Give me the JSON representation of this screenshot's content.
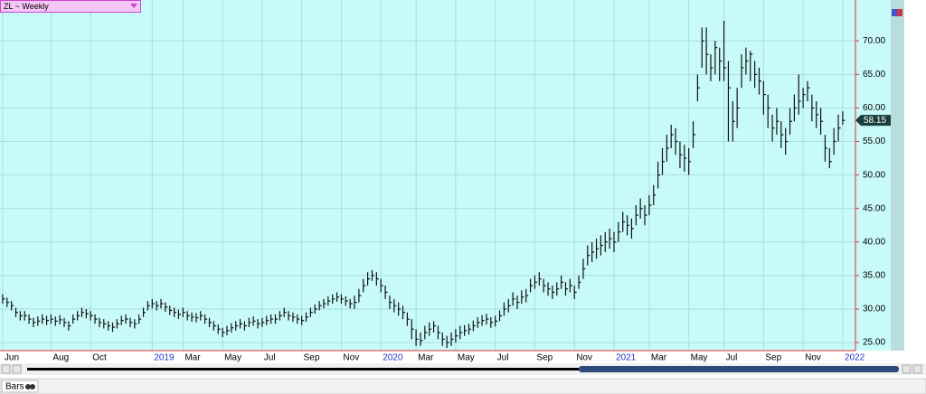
{
  "chart_data": {
    "type": "ohlc",
    "title": "ZL ~ Weekly",
    "color": "#111111",
    "grid": true,
    "xlim": [
      -0.6,
      193.9
    ],
    "xticks": [
      {
        "value": 0,
        "label": "Jun"
      },
      {
        "value": 11,
        "label": "Aug"
      },
      {
        "value": 20,
        "label": "Oct"
      },
      {
        "value": 34,
        "label": "2019"
      },
      {
        "value": 41,
        "label": "Mar"
      },
      {
        "value": 50,
        "label": "May"
      },
      {
        "value": 59,
        "label": "Jul"
      },
      {
        "value": 68,
        "label": "Sep"
      },
      {
        "value": 77,
        "label": "Nov"
      },
      {
        "value": 86,
        "label": "2020"
      },
      {
        "value": 94,
        "label": "Mar"
      },
      {
        "value": 103,
        "label": "May"
      },
      {
        "value": 112,
        "label": "Jul"
      },
      {
        "value": 121,
        "label": "Sep"
      },
      {
        "value": 130,
        "label": "Nov"
      },
      {
        "value": 139,
        "label": "2021"
      },
      {
        "value": 147,
        "label": "Mar"
      },
      {
        "value": 156,
        "label": "May"
      },
      {
        "value": 164,
        "label": "Jul"
      },
      {
        "value": 173,
        "label": "Sep"
      },
      {
        "value": 182,
        "label": "Nov"
      },
      {
        "value": 191,
        "label": "2022"
      }
    ],
    "ylim": [
      23.8,
      76.1
    ],
    "yticks": [
      {
        "value": 25,
        "label": "25.00"
      },
      {
        "value": 30,
        "label": "30.00"
      },
      {
        "value": 35,
        "label": "35.00"
      },
      {
        "value": 40,
        "label": "40.00"
      },
      {
        "value": 45,
        "label": "45.00"
      },
      {
        "value": 50,
        "label": "50.00"
      },
      {
        "value": 55,
        "label": "55.00"
      },
      {
        "value": 60,
        "label": "60.00"
      },
      {
        "value": 65,
        "label": "65.00"
      },
      {
        "value": 70,
        "label": "70.00"
      }
    ],
    "high": [
      32.2,
      31.7,
      31.2,
      30.2,
      29.7,
      29.7,
      29.2,
      28.7,
      28.9,
      29.2,
      29,
      29.2,
      28.9,
      29.1,
      28.7,
      28.2,
      29.2,
      29.7,
      30.2,
      30,
      29.7,
      29.2,
      28.7,
      28.5,
      28.2,
      28,
      28.5,
      29,
      29.2,
      28.7,
      28.5,
      29.2,
      30.2,
      31.2,
      31.5,
      31.2,
      31.5,
      31,
      30.5,
      30.2,
      29.9,
      30.2,
      29.7,
      29.5,
      29.4,
      29.7,
      29.2,
      28.7,
      28.2,
      27.7,
      27.2,
      27.5,
      27.9,
      28.2,
      28.5,
      28.2,
      28.7,
      28.9,
      28.5,
      28.7,
      29,
      29.2,
      29.2,
      29.7,
      30.2,
      29.7,
      29.5,
      29.2,
      29,
      29.5,
      30.2,
      30.7,
      31.2,
      31.5,
      31.9,
      32.2,
      32.5,
      32.2,
      31.9,
      31.5,
      32,
      33,
      34.5,
      35.5,
      35.8,
      35.5,
      34.5,
      33.5,
      32,
      31.5,
      31,
      30.5,
      29.5,
      28.5,
      27,
      26.5,
      27.5,
      28,
      28.2,
      27.5,
      26.5,
      26,
      26.5,
      27,
      27.5,
      27.6,
      27.8,
      28.3,
      28.8,
      29.1,
      29.3,
      28.8,
      29,
      29.8,
      31,
      31.5,
      32.5,
      32,
      32.8,
      33,
      34.5,
      35,
      35.5,
      34.5,
      34,
      33.5,
      34,
      35,
      34,
      34.5,
      33.5,
      35,
      37.5,
      39.5,
      40,
      40.5,
      41,
      41.5,
      42,
      41.5,
      43,
      44.5,
      44,
      43.5,
      45.5,
      46.5,
      45.5,
      47,
      48.5,
      52,
      54,
      56,
      57.5,
      57,
      55,
      54.5,
      54,
      58,
      65,
      72,
      72,
      68,
      70,
      69,
      73,
      67,
      61,
      63,
      68,
      69,
      68.5,
      67,
      66,
      64,
      62,
      59,
      60,
      58,
      57,
      60,
      62,
      65,
      63,
      64,
      62,
      61,
      60,
      56,
      54,
      57,
      59,
      59.5
    ],
    "low": [
      30.8,
      30.3,
      29.8,
      28.8,
      28.3,
      28.3,
      27.8,
      27.3,
      27.5,
      27.8,
      27.6,
      27.8,
      27.5,
      27.7,
      27.3,
      26.8,
      27.8,
      28.3,
      28.8,
      28.6,
      28.3,
      27.8,
      27.3,
      27.1,
      26.8,
      26.6,
      27.1,
      27.6,
      27.8,
      27.3,
      27.1,
      27.8,
      28.8,
      29.8,
      30.1,
      29.8,
      30.1,
      29.6,
      29.1,
      28.8,
      28.5,
      28.8,
      28.3,
      28.1,
      28,
      28.3,
      27.8,
      27.3,
      26.8,
      26.3,
      25.8,
      26.1,
      26.5,
      26.8,
      27.1,
      26.8,
      27.3,
      27.5,
      27.1,
      27.3,
      27.6,
      27.8,
      27.8,
      28.3,
      28.8,
      28.3,
      28.1,
      27.8,
      27.6,
      28.1,
      28.8,
      29.3,
      29.8,
      30.1,
      30.5,
      30.8,
      31.1,
      30.8,
      30.5,
      30.1,
      30,
      31,
      32.5,
      33.5,
      34.2,
      33.5,
      32.5,
      31.5,
      30,
      29.5,
      29,
      28.5,
      27.5,
      25.5,
      24.5,
      24.5,
      25.5,
      26,
      26.5,
      25.5,
      24.5,
      24.2,
      24.5,
      25,
      25.5,
      26,
      26.2,
      26.7,
      27.2,
      27.5,
      27.7,
      27.2,
      27.4,
      28.2,
      29,
      29.5,
      30.5,
      30,
      30.8,
      31,
      32.5,
      33,
      33.5,
      32.5,
      32,
      31.5,
      32,
      33,
      32,
      32.5,
      31.5,
      33,
      34.5,
      36.5,
      37,
      37.5,
      38,
      38.5,
      39,
      38.5,
      40,
      41.5,
      41,
      40.5,
      42.5,
      43.5,
      42.5,
      44,
      45.5,
      48,
      50,
      52,
      54,
      53,
      51,
      50.5,
      50,
      54,
      61,
      66,
      65,
      64,
      65,
      64,
      64,
      55,
      55,
      57,
      63,
      65,
      64,
      63,
      62,
      59,
      57,
      55,
      56,
      54,
      53,
      56,
      58,
      59,
      60,
      61,
      58,
      57,
      56,
      52,
      51,
      53,
      55,
      57.5
    ],
    "close": [
      31.5,
      31,
      30.5,
      29.5,
      29,
      29,
      28.5,
      28,
      28.2,
      28.5,
      28.3,
      28.5,
      28.2,
      28.4,
      28,
      27.5,
      28.5,
      29,
      29.5,
      29.3,
      29,
      28.5,
      28,
      27.8,
      27.5,
      27.3,
      27.8,
      28.3,
      28.5,
      28,
      27.8,
      28.5,
      29.5,
      30.5,
      30.8,
      30.5,
      30.8,
      30.3,
      29.8,
      29.5,
      29.2,
      29.5,
      29,
      28.8,
      28.7,
      29,
      28.5,
      28,
      27.5,
      27,
      26.5,
      26.8,
      27.2,
      27.5,
      27.8,
      27.5,
      28,
      28.2,
      27.8,
      28,
      28.3,
      28.5,
      28.5,
      29,
      29.5,
      29,
      28.8,
      28.5,
      28.3,
      28.8,
      29.5,
      30,
      30.5,
      30.8,
      31.2,
      31.5,
      31.8,
      31.5,
      31.2,
      30.8,
      31,
      32,
      33.5,
      34.5,
      35,
      34.5,
      33.5,
      32.5,
      31,
      30.5,
      30,
      29.5,
      28.5,
      27,
      25.5,
      25.3,
      26.5,
      27,
      27.5,
      26.5,
      25.5,
      25,
      25.5,
      26,
      26.5,
      26.8,
      27,
      27.5,
      28,
      28.3,
      28.5,
      28,
      28.2,
      29,
      30,
      30.5,
      31.5,
      31,
      31.8,
      32,
      33.5,
      34,
      34.5,
      33.5,
      33,
      32.5,
      33,
      34,
      33,
      33.5,
      32.5,
      34,
      36,
      38,
      38.5,
      39,
      39.5,
      40,
      40.5,
      40,
      41.5,
      43,
      42.5,
      42,
      44,
      45,
      44,
      45.5,
      47,
      50,
      52,
      54,
      56,
      55,
      53,
      52.5,
      52,
      56,
      63,
      70,
      68,
      66,
      69,
      67,
      66,
      63,
      58,
      60,
      66,
      67,
      68,
      65,
      64,
      62,
      60,
      57,
      58,
      56,
      55,
      58,
      60,
      61,
      62,
      63,
      60,
      59,
      58,
      54,
      52,
      55,
      57,
      58.15
    ]
  },
  "footer": {
    "tab": "Bars"
  }
}
